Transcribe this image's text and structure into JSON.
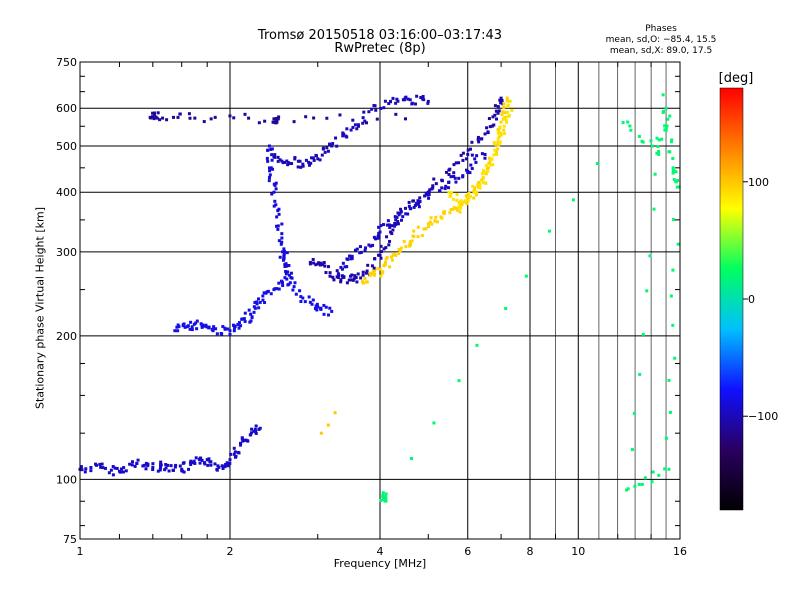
{
  "header": {
    "title_line1": "Tromsø 20150518 03:16:00–03:17:43",
    "title_line2": "RwPretec (8p)",
    "stats_title": "Phases",
    "stats_o": "mean, sd,O: −85.4, 15.5",
    "stats_x": "mean, sd,X:  89.0, 17.5"
  },
  "colorbar": {
    "title": "[deg]",
    "ticks": [
      "100",
      "0",
      "−100"
    ],
    "tick_values": [
      100,
      0,
      -100
    ],
    "range": [
      -180,
      180
    ],
    "colors": [
      "#000000",
      "#2a0060",
      "#1010ff",
      "#00c0ff",
      "#00ff60",
      "#ffff00",
      "#ff8000",
      "#ff0000"
    ]
  },
  "chart_data": {
    "type": "scatter",
    "xlabel": "Frequency [MHz]",
    "ylabel": "Stationary phase Virtual Height [km]",
    "xscale": "log",
    "yscale": "log",
    "xlim": [
      1,
      16
    ],
    "ylim": [
      75,
      750
    ],
    "x_ticks": [
      1,
      2,
      4,
      6,
      8,
      10,
      16
    ],
    "x_tick_labels": [
      "1",
      "2",
      "4",
      "6",
      "8",
      "10",
      "16"
    ],
    "y_ticks": [
      75,
      100,
      200,
      300,
      400,
      500,
      600,
      750
    ],
    "y_tick_labels": [
      "75",
      "100",
      "200",
      "300",
      "400",
      "500",
      "600",
      "750"
    ],
    "grid": true,
    "color_by": "phase (deg)",
    "series": [
      {
        "phase": -95,
        "points": [
          [
            1.0,
            105
          ],
          [
            1.1,
            106
          ],
          [
            1.2,
            104
          ],
          [
            1.3,
            108
          ],
          [
            1.4,
            106
          ],
          [
            1.5,
            107
          ],
          [
            1.6,
            105
          ],
          [
            1.7,
            108
          ],
          [
            1.8,
            110
          ],
          [
            1.9,
            106
          ],
          [
            2.0,
            110
          ],
          [
            2.1,
            118
          ],
          [
            2.2,
            124
          ],
          [
            2.3,
            128
          ]
        ]
      },
      {
        "phase": -85,
        "points": [
          [
            1.55,
            205
          ],
          [
            1.65,
            210
          ],
          [
            1.75,
            212
          ],
          [
            1.85,
            206
          ],
          [
            2.0,
            205
          ],
          [
            2.1,
            210
          ],
          [
            2.2,
            222
          ],
          [
            2.3,
            235
          ],
          [
            2.45,
            250
          ],
          [
            2.6,
            263
          ],
          [
            2.8,
            240
          ],
          [
            3.0,
            230
          ],
          [
            3.2,
            225
          ]
        ]
      },
      {
        "phase": -90,
        "points": [
          [
            2.4,
            500
          ],
          [
            2.42,
            450
          ],
          [
            2.45,
            400
          ],
          [
            2.5,
            340
          ],
          [
            2.55,
            300
          ],
          [
            2.6,
            280
          ],
          [
            2.65,
            265
          ]
        ]
      },
      {
        "phase": -100,
        "points": [
          [
            2.45,
            475
          ],
          [
            2.6,
            465
          ],
          [
            2.8,
            458
          ],
          [
            3.0,
            470
          ],
          [
            3.2,
            500
          ],
          [
            3.5,
            540
          ],
          [
            3.8,
            590
          ],
          [
            4.2,
            620
          ],
          [
            4.6,
            625
          ],
          [
            5.0,
            620
          ]
        ]
      },
      {
        "phase": -105,
        "points": [
          [
            2.9,
            285
          ],
          [
            3.1,
            280
          ],
          [
            3.3,
            265
          ],
          [
            3.5,
            262
          ],
          [
            3.7,
            268
          ],
          [
            4.0,
            295
          ],
          [
            4.2,
            330
          ],
          [
            4.5,
            370
          ],
          [
            5.0,
            400
          ],
          [
            5.5,
            445
          ],
          [
            6.0,
            480
          ],
          [
            6.5,
            530
          ],
          [
            6.8,
            580
          ],
          [
            7.0,
            630
          ]
        ]
      },
      {
        "phase": -95,
        "points": [
          [
            3.3,
            270
          ],
          [
            3.5,
            290
          ],
          [
            3.8,
            310
          ],
          [
            4.0,
            330
          ],
          [
            4.3,
            350
          ],
          [
            4.6,
            370
          ],
          [
            5.0,
            395
          ],
          [
            5.5,
            420
          ],
          [
            6.0,
            440
          ],
          [
            6.5,
            480
          ]
        ]
      },
      {
        "phase": 95,
        "points": [
          [
            3.7,
            258
          ],
          [
            3.9,
            268
          ],
          [
            4.1,
            282
          ],
          [
            4.3,
            295
          ],
          [
            4.6,
            315
          ],
          [
            4.9,
            335
          ],
          [
            5.3,
            355
          ],
          [
            5.7,
            370
          ],
          [
            6.0,
            385
          ],
          [
            6.3,
            410
          ],
          [
            6.6,
            450
          ],
          [
            6.9,
            510
          ],
          [
            7.1,
            570
          ],
          [
            7.2,
            630
          ]
        ]
      },
      {
        "phase": 88,
        "points": [
          [
            5.5,
            400
          ],
          [
            5.8,
            370
          ],
          [
            6.2,
            400
          ],
          [
            6.5,
            440
          ],
          [
            6.8,
            490
          ],
          [
            7.1,
            550
          ],
          [
            7.3,
            620
          ]
        ]
      },
      {
        "phase": 100,
        "points": [
          [
            3.05,
            125
          ],
          [
            3.15,
            130
          ],
          [
            3.25,
            138
          ]
        ]
      },
      {
        "phase": -110,
        "points": [
          [
            1.4,
            575
          ],
          [
            1.42,
            575
          ],
          [
            1.7,
            572
          ],
          [
            2.45,
            570
          ],
          [
            2.5,
            570
          ],
          [
            4.5,
            570
          ]
        ]
      },
      {
        "phase": 20,
        "points": [
          [
            4.05,
            92
          ],
          [
            4.1,
            92
          ],
          [
            12.3,
            560
          ],
          [
            14.5,
            480
          ],
          [
            15.0,
            600
          ],
          [
            15.5,
            450
          ],
          [
            15.8,
            410
          ],
          [
            15.2,
            105
          ],
          [
            12.5,
            95
          ],
          [
            14.8,
            640
          ]
        ]
      }
    ]
  }
}
